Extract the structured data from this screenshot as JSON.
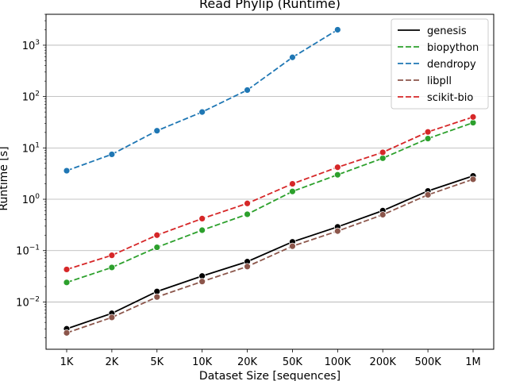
{
  "chart_data": {
    "type": "line",
    "title": "Read Phylip  (Runtime)",
    "xlabel": "Dataset Size  [sequences]",
    "ylabel": "Runtime  [s]",
    "yscale": "log",
    "ylim": [
      0.0012,
      4000
    ],
    "grid": "y-major",
    "legend_position": "top-right",
    "categories": [
      "1K",
      "2K",
      "5K",
      "10K",
      "20K",
      "50K",
      "100K",
      "200K",
      "500K",
      "1M"
    ],
    "y_ticks": [
      {
        "base": "10",
        "exp": "−2"
      },
      {
        "base": "10",
        "exp": "−1"
      },
      {
        "base": "10",
        "exp": "0"
      },
      {
        "base": "10",
        "exp": "1"
      },
      {
        "base": "10",
        "exp": "2"
      },
      {
        "base": "10",
        "exp": "3"
      }
    ],
    "series": [
      {
        "name": "genesis",
        "color": "#000000",
        "dash": "solid",
        "values": [
          0.003,
          0.006,
          0.016,
          0.032,
          0.061,
          0.148,
          0.29,
          0.6,
          1.45,
          2.85
        ]
      },
      {
        "name": "biopython",
        "color": "#2ca02c",
        "dash": "dashed",
        "values": [
          0.024,
          0.047,
          0.116,
          0.25,
          0.51,
          1.42,
          3.0,
          6.3,
          15.2,
          31.0
        ]
      },
      {
        "name": "dendropy",
        "color": "#1f77b4",
        "dash": "dashed",
        "values": [
          3.6,
          7.5,
          21.6,
          50.0,
          134.0,
          580.0,
          2000.0,
          null,
          null,
          null
        ]
      },
      {
        "name": "libpll",
        "color": "#8c564b",
        "dash": "dashed",
        "values": [
          0.0025,
          0.005,
          0.0125,
          0.025,
          0.049,
          0.122,
          0.24,
          0.5,
          1.22,
          2.45
        ]
      },
      {
        "name": "scikit-bio",
        "color": "#d62728",
        "dash": "dashed",
        "values": [
          0.043,
          0.081,
          0.2,
          0.42,
          0.83,
          2.0,
          4.2,
          8.2,
          20.5,
          40.0
        ]
      }
    ]
  }
}
